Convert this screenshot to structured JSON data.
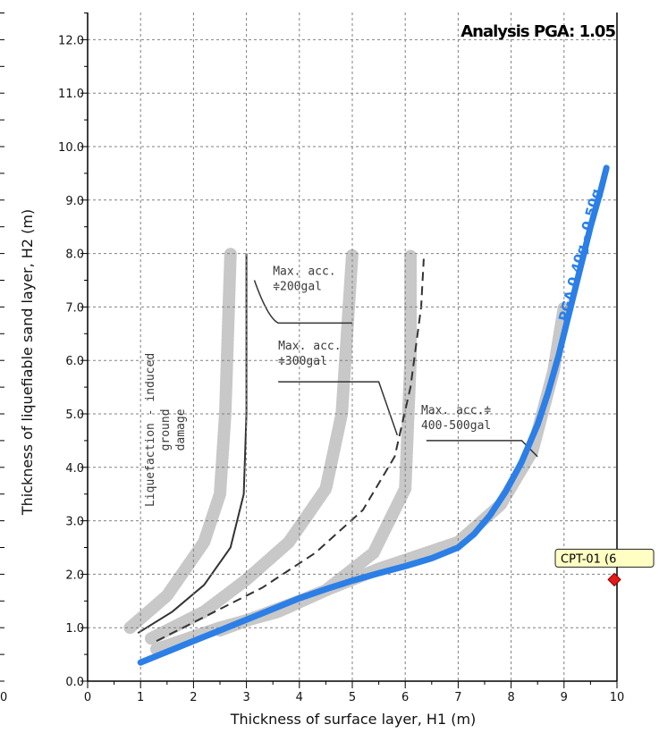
{
  "chart_data": {
    "type": "line",
    "title": "",
    "xlabel": "Thickness of surface layer, H1 (m)",
    "ylabel": "Thickness of liquefiable sand layer, H2 (m)",
    "xlim": [
      0,
      10
    ],
    "ylim": [
      0,
      12.5
    ],
    "x_ticks": [
      0,
      1,
      2,
      3,
      4,
      5,
      6,
      7,
      8,
      9,
      10
    ],
    "y_ticks": [
      0,
      1,
      2,
      3,
      4,
      5,
      6,
      7,
      8,
      9,
      10,
      11,
      12
    ],
    "grid": true,
    "annotation_pga": "Analysis PGA: 1.05",
    "background_labels": {
      "damage": [
        "Liquefaction - induced",
        "ground",
        "damage"
      ],
      "acc200": [
        "Max. acc.",
        "≑200gal"
      ],
      "acc300": [
        "Max. acc.",
        "≑300gal"
      ],
      "acc400": [
        "Max. acc.≑",
        "400-500gal"
      ]
    },
    "series": [
      {
        "name": "PGA 0.40g - 0.50g",
        "color": "#2b7fe6",
        "x": [
          1.0,
          1.5,
          2.0,
          2.5,
          3.0,
          3.5,
          4.0,
          4.5,
          5.0,
          5.5,
          6.0,
          6.5,
          7.0,
          7.3,
          7.6,
          7.9,
          8.2,
          8.5,
          8.7,
          8.9,
          9.1,
          9.3,
          9.5,
          9.7,
          9.8
        ],
        "y": [
          0.35,
          0.55,
          0.75,
          0.95,
          1.15,
          1.35,
          1.55,
          1.72,
          1.88,
          2.02,
          2.15,
          2.3,
          2.5,
          2.75,
          3.1,
          3.55,
          4.1,
          4.8,
          5.4,
          6.1,
          6.9,
          7.7,
          8.5,
          9.2,
          9.6
        ]
      }
    ],
    "points": [
      {
        "name": "CPT-01 (6",
        "x": 9.95,
        "y": 1.9,
        "color": "#e31a1c"
      }
    ]
  }
}
